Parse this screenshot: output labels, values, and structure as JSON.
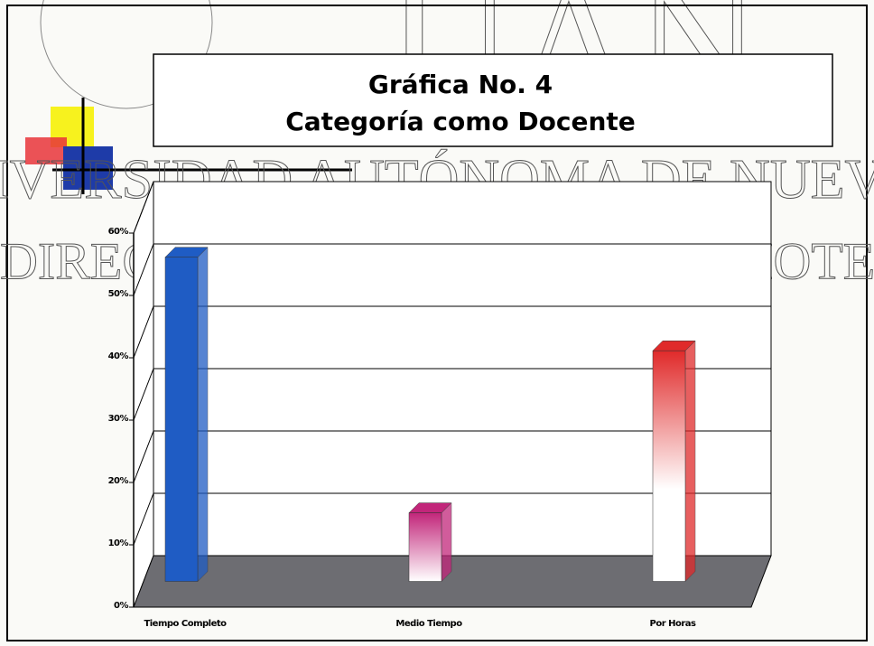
{
  "chart_data": {
    "type": "bar3d",
    "title": "Gráfica No. 4",
    "subtitle": "Categoría como Docente",
    "categories": [
      "Tiempo Completo",
      "Medio Tiempo",
      "Por Horas"
    ],
    "values": [
      52,
      11,
      37
    ],
    "colors": [
      "#1f5cc4",
      "#c2267a",
      "#e02a2a"
    ],
    "ylim": [
      0,
      60
    ],
    "yticks": [
      {
        "value": 0,
        "label": "0%"
      },
      {
        "value": 10,
        "label": "10%"
      },
      {
        "value": 20,
        "label": "20%"
      },
      {
        "value": 30,
        "label": "30%"
      },
      {
        "value": 40,
        "label": "40%"
      },
      {
        "value": 50,
        "label": "50%"
      },
      {
        "value": 60,
        "label": "60%"
      }
    ],
    "grid": true
  },
  "watermark": {
    "line1": "IVERSIDAD AUTÓNOMA DE NUEVO",
    "line2": "DIRECCIÓN GENERAL DE BIBLIOTEC",
    "logo": "UAN"
  }
}
